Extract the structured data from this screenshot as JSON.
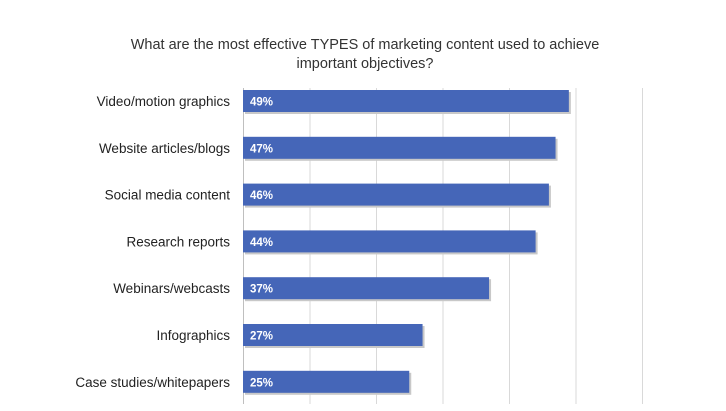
{
  "chart_data": {
    "type": "bar",
    "orientation": "horizontal",
    "title": "What are the most effective TYPES of marketing content used to achieve important objectives?",
    "categories": [
      "Video/motion graphics",
      "Website articles/blogs",
      "Social media content",
      "Research reports",
      "Webinars/webcasts",
      "Infographics",
      "Case studies/whitepapers"
    ],
    "values": [
      49,
      47,
      46,
      44,
      37,
      27,
      25
    ],
    "data_labels": [
      "49%",
      "47%",
      "46%",
      "44%",
      "37%",
      "27%",
      "25%"
    ],
    "xlim": [
      0,
      60
    ],
    "xlabel": "",
    "ylabel": "",
    "grid": true,
    "legend": false,
    "bar_color": "#4566b8",
    "shadow_color": "#c8c8c8",
    "grid_color": "#d9d9d9"
  }
}
